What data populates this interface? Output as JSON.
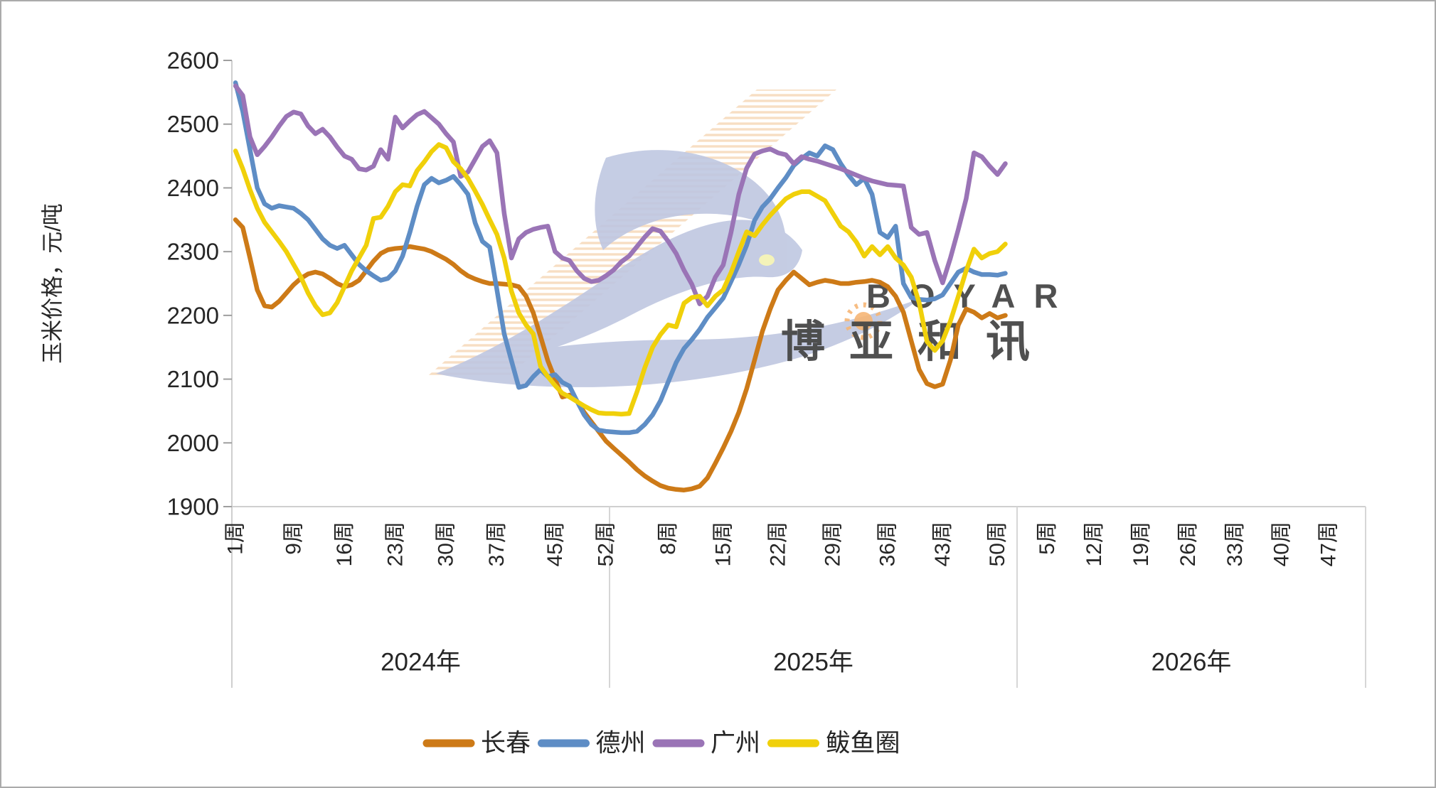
{
  "theme": {
    "background": "#ffffff",
    "border": "#ababab",
    "axis_line": "#cfcfcf",
    "tick_mark": "#9e9e9e",
    "separator": "#d6d6d6",
    "text": "#262626",
    "watermark_blue": "#b3bcdb",
    "watermark_orange": "#f2cea6",
    "watermark_sun": "#f4a95c",
    "watermark_eye": "#f1efa3"
  },
  "watermark": {
    "en_text": "BOYAR",
    "cn_text": "博亚和讯"
  },
  "chart_data": {
    "type": "line",
    "ylabel": "玉米价格，元/吨",
    "ylim": [
      1900,
      2600
    ],
    "yticks": [
      1900,
      2000,
      2100,
      2200,
      2300,
      2400,
      2500,
      2600
    ],
    "grid": "off",
    "legend_position": "bottom",
    "week_suffix": "周",
    "years": [
      {
        "label": "2024年",
        "weeks_in_axis": 52,
        "tick_weeks": [
          1,
          9,
          16,
          23,
          30,
          37,
          45,
          52
        ]
      },
      {
        "label": "2025年",
        "weeks_in_axis": 52,
        "tick_weeks": [
          8,
          15,
          22,
          29,
          36,
          43,
          50
        ]
      },
      {
        "label": "2026年",
        "weeks_in_axis": 52,
        "tick_weeks": [
          5,
          12,
          19,
          26,
          33,
          40,
          47
        ]
      }
    ],
    "series_note": "values are weekly corn prices in yuan/ton; first 52 values = 2024 weeks 1-52, remaining 51 values = 2025 weeks 1-51 (data ends ~week 51 of 2025; 2026 has no data)",
    "series": [
      {
        "name": "长春",
        "id": "changchun",
        "color": "#cd7a17",
        "values": [
          2350,
          2338,
          2290,
          2240,
          2215,
          2213,
          2222,
          2235,
          2248,
          2258,
          2265,
          2268,
          2265,
          2258,
          2250,
          2245,
          2248,
          2255,
          2270,
          2285,
          2297,
          2303,
          2305,
          2306,
          2308,
          2306,
          2304,
          2300,
          2294,
          2288,
          2280,
          2270,
          2262,
          2257,
          2253,
          2250,
          2250,
          2249,
          2248,
          2245,
          2230,
          2204,
          2167,
          2129,
          2100,
          2072,
          2075,
          2066,
          2048,
          2033,
          2018,
          2003,
          1992,
          1981,
          1970,
          1958,
          1948,
          1940,
          1933,
          1929,
          1927,
          1926,
          1928,
          1932,
          1945,
          1968,
          1992,
          2018,
          2048,
          2085,
          2130,
          2175,
          2210,
          2240,
          2255,
          2268,
          2258,
          2248,
          2252,
          2255,
          2253,
          2250,
          2250,
          2252,
          2253,
          2255,
          2252,
          2245,
          2230,
          2205,
          2160,
          2115,
          2093,
          2088,
          2092,
          2130,
          2185,
          2210,
          2205,
          2196,
          2203,
          2196,
          2200
        ]
      },
      {
        "name": "德州",
        "id": "dezhou",
        "color": "#5e8dc5",
        "values": [
          2565,
          2520,
          2460,
          2400,
          2375,
          2368,
          2372,
          2370,
          2368,
          2360,
          2350,
          2335,
          2320,
          2310,
          2305,
          2310,
          2295,
          2280,
          2270,
          2262,
          2255,
          2258,
          2270,
          2293,
          2330,
          2371,
          2405,
          2415,
          2408,
          2412,
          2418,
          2405,
          2390,
          2345,
          2316,
          2307,
          2240,
          2171,
          2129,
          2087,
          2090,
          2104,
          2115,
          2104,
          2107,
          2095,
          2089,
          2066,
          2044,
          2029,
          2020,
          2018,
          2017,
          2016,
          2016,
          2018,
          2029,
          2044,
          2066,
          2096,
          2126,
          2148,
          2162,
          2178,
          2197,
          2212,
          2227,
          2253,
          2280,
          2310,
          2349,
          2370,
          2383,
          2400,
          2416,
          2435,
          2446,
          2455,
          2450,
          2466,
          2460,
          2438,
          2420,
          2405,
          2415,
          2390,
          2330,
          2322,
          2340,
          2250,
          2228,
          2225,
          2224,
          2226,
          2232,
          2250,
          2268,
          2274,
          2268,
          2264,
          2264,
          2263,
          2266
        ]
      },
      {
        "name": "广州",
        "id": "guangzhou",
        "color": "#9a74b6",
        "values": [
          2560,
          2545,
          2480,
          2452,
          2465,
          2480,
          2497,
          2512,
          2519,
          2516,
          2497,
          2485,
          2492,
          2480,
          2464,
          2450,
          2445,
          2430,
          2428,
          2434,
          2460,
          2445,
          2511,
          2494,
          2505,
          2515,
          2520,
          2510,
          2500,
          2485,
          2472,
          2418,
          2425,
          2445,
          2465,
          2474,
          2455,
          2360,
          2290,
          2320,
          2330,
          2335,
          2338,
          2340,
          2300,
          2290,
          2286,
          2270,
          2258,
          2253,
          2255,
          2262,
          2271,
          2284,
          2293,
          2308,
          2323,
          2336,
          2332,
          2316,
          2297,
          2271,
          2249,
          2218,
          2230,
          2260,
          2279,
          2330,
          2390,
          2431,
          2453,
          2458,
          2461,
          2455,
          2452,
          2438,
          2449,
          2445,
          2442,
          2438,
          2434,
          2430,
          2425,
          2420,
          2415,
          2411,
          2408,
          2405,
          2404,
          2403,
          2338,
          2327,
          2330,
          2286,
          2251,
          2290,
          2335,
          2383,
          2455,
          2449,
          2434,
          2421,
          2438
        ]
      },
      {
        "name": "鲅鱼圈",
        "id": "bayuquan",
        "color": "#f0d00a",
        "values": [
          2458,
          2430,
          2397,
          2368,
          2346,
          2331,
          2316,
          2300,
          2280,
          2260,
          2235,
          2215,
          2201,
          2204,
          2220,
          2245,
          2270,
          2290,
          2310,
          2352,
          2354,
          2371,
          2394,
          2405,
          2403,
          2427,
          2441,
          2457,
          2468,
          2463,
          2441,
          2430,
          2415,
          2395,
          2374,
          2350,
          2327,
          2290,
          2238,
          2204,
          2185,
          2171,
          2120,
          2104,
          2090,
          2078,
          2072,
          2065,
          2058,
          2052,
          2047,
          2046,
          2046,
          2045,
          2046,
          2080,
          2118,
          2150,
          2170,
          2185,
          2182,
          2219,
          2228,
          2230,
          2215,
          2230,
          2240,
          2267,
          2300,
          2331,
          2325,
          2342,
          2357,
          2370,
          2383,
          2390,
          2394,
          2394,
          2387,
          2380,
          2360,
          2340,
          2331,
          2315,
          2293,
          2308,
          2295,
          2308,
          2290,
          2279,
          2260,
          2220,
          2159,
          2145,
          2160,
          2191,
          2230,
          2270,
          2304,
          2290,
          2297,
          2300,
          2312
        ]
      }
    ]
  }
}
